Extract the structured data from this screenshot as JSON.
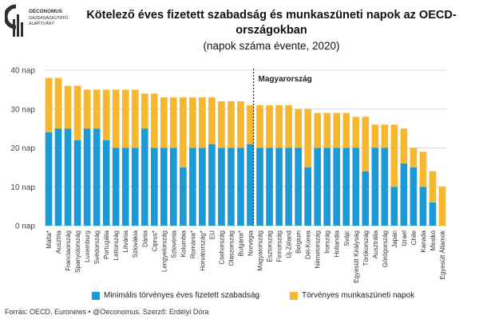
{
  "header": {
    "title": "Kötelező éves fizetett szabadság és munkaszüneti napok az OECD-országokban",
    "subtitle": "(napok száma évente, 2020)"
  },
  "logo": {
    "lines": [
      "OECONOMUS",
      "GAZDASÁGKUTATÓ",
      "ALAPÍTVÁNY"
    ],
    "color": "#2f2f2f"
  },
  "footer": {
    "source": "Forrás: OECD, Euronews • @Oeconomus. Szerző: Erdélyi Dóra"
  },
  "chart_data": {
    "type": "bar",
    "stacked": true,
    "categories": [
      "Málta*",
      "Ausztria",
      "Franciaország",
      "Spanyolország",
      "Luxemburg",
      "Svédország",
      "Portugália",
      "Lettország",
      "Litvánia",
      "Szlovákia",
      "Dánia",
      "Ciprus*",
      "Lengyelország",
      "Szlovénia",
      "Kolumbia",
      "Románia*",
      "Horvátország*",
      "EU",
      "Csehország",
      "Olaszország",
      "Bulgária*",
      "Norvégia",
      "Magyarország",
      "Észtország",
      "Finnország",
      "Új-Zéland",
      "Belgium",
      "Dél-Korea",
      "Németország",
      "Írország",
      "Hollandia",
      "Svájc",
      "Egyesült Királyság",
      "Törökország",
      "Ausztrália",
      "Görögország",
      "Japán",
      "Izrael",
      "Chile",
      "Kanada",
      "Mexikó",
      "Egyesült Államok"
    ],
    "series": [
      {
        "name": "Minimális törvényes éves fizetett szabadság",
        "color": "#1a9ad6",
        "values": [
          24,
          25,
          25,
          22,
          25,
          25,
          22,
          20,
          20,
          20,
          25,
          20,
          20,
          20,
          15,
          20,
          20,
          21,
          20,
          20,
          20,
          21,
          20,
          20,
          20,
          20,
          20,
          15,
          20,
          20,
          20,
          20,
          20,
          14,
          20,
          20,
          10,
          16,
          15,
          10,
          6,
          0
        ]
      },
      {
        "name": "Törvényes munkaszüneti napok",
        "color": "#f7b82d",
        "values": [
          14,
          13,
          11,
          14,
          10,
          10,
          13,
          15,
          15,
          15,
          9,
          14,
          13,
          13,
          18,
          13,
          13,
          12,
          12,
          12,
          12,
          10,
          11,
          11,
          11,
          11,
          10,
          15,
          9,
          9,
          9,
          9,
          8,
          14,
          6,
          6,
          16,
          9,
          5,
          9,
          8,
          10
        ]
      }
    ],
    "y_ticks": [
      "0 nap",
      "10 nap",
      "20 nap",
      "30 nap",
      "40 nap"
    ],
    "ylim": [
      0,
      40
    ],
    "grid": true,
    "legend": "bottom",
    "annotation": {
      "label": "Magyarország",
      "category": "Magyarország"
    }
  }
}
